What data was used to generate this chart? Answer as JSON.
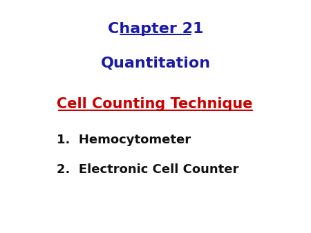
{
  "background_color": "#ffffff",
  "title": "Chapter 21",
  "title_color": "#1a1aaa",
  "title_fontsize": 16,
  "title_bold": true,
  "title_underline": true,
  "subtitle": "Quantitation",
  "subtitle_color": "#1a1aaa",
  "subtitle_fontsize": 16,
  "subtitle_bold": true,
  "section_title": "Cell Counting Technique",
  "section_title_color": "#cc0000",
  "section_title_fontsize": 15,
  "section_title_bold": true,
  "section_title_underline": true,
  "items": [
    "1.  Hemocytometer",
    "2.  Electronic Cell Counter"
  ],
  "items_color": "#111111",
  "items_fontsize": 13,
  "items_bold": false
}
